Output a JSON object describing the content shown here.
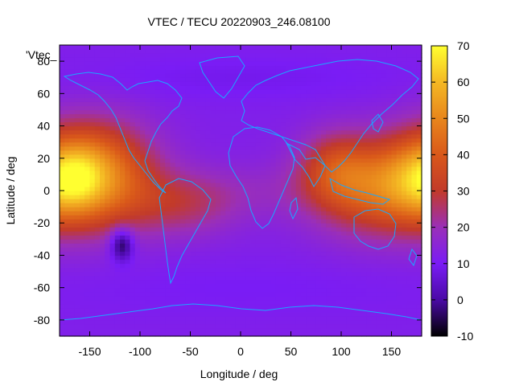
{
  "chart_data": {
    "type": "heatmap",
    "title": "VTEC / TECU 20220903_246.08100",
    "xlabel": "Longitude / deg",
    "ylabel": "Latitude / deg",
    "legend_key": "'Vtec_",
    "xlim": [
      -180,
      180
    ],
    "ylim": [
      -90,
      90
    ],
    "x_ticks": [
      -150,
      -100,
      -50,
      0,
      50,
      100,
      150
    ],
    "y_ticks": [
      -80,
      -60,
      -40,
      -20,
      0,
      20,
      40,
      60,
      80
    ],
    "colorbar": {
      "range": [
        -10,
        70
      ],
      "ticks": [
        -10,
        0,
        10,
        20,
        30,
        40,
        50,
        60,
        70
      ],
      "stops": [
        {
          "v": -10,
          "color": "#000000"
        },
        {
          "v": 0,
          "color": "#4a0aa6"
        },
        {
          "v": 10,
          "color": "#7a1cf5"
        },
        {
          "v": 20,
          "color": "#9a2fb8"
        },
        {
          "v": 30,
          "color": "#c23a2a"
        },
        {
          "v": 40,
          "color": "#d9581a"
        },
        {
          "v": 50,
          "color": "#e8861c"
        },
        {
          "v": 60,
          "color": "#f4b824"
        },
        {
          "v": 70,
          "color": "#ffff30"
        }
      ]
    },
    "field_background": 12,
    "features": [
      {
        "lon": -145,
        "lat": 10,
        "sx": 40,
        "sy": 22,
        "amp": 38
      },
      {
        "lon": -160,
        "lat": 8,
        "sx": 18,
        "sy": 15,
        "amp": 10
      },
      {
        "lon": 135,
        "lat": 2,
        "sx": 45,
        "sy": 20,
        "amp": 28
      },
      {
        "lon": 175,
        "lat": 8,
        "sx": 25,
        "sy": 18,
        "amp": 12
      },
      {
        "lon": 95,
        "lat": 15,
        "sx": 25,
        "sy": 15,
        "amp": 15
      },
      {
        "lon": -60,
        "lat": -8,
        "sx": 40,
        "sy": 14,
        "amp": 13
      },
      {
        "lon": 20,
        "lat": 0,
        "sx": 60,
        "sy": 12,
        "amp": 4
      },
      {
        "lon": -118,
        "lat": -33,
        "sx": 8,
        "sy": 7,
        "amp": -20
      },
      {
        "lon": 0,
        "lat": 70,
        "sx": 120,
        "sy": 10,
        "amp": -3
      },
      {
        "lon": 0,
        "lat": -60,
        "sx": 150,
        "sy": 12,
        "amp": -2
      }
    ],
    "grid": false,
    "colorbar_position": "right"
  },
  "colors": {
    "coastline": "#1aa8ff",
    "frame": "#000000"
  }
}
